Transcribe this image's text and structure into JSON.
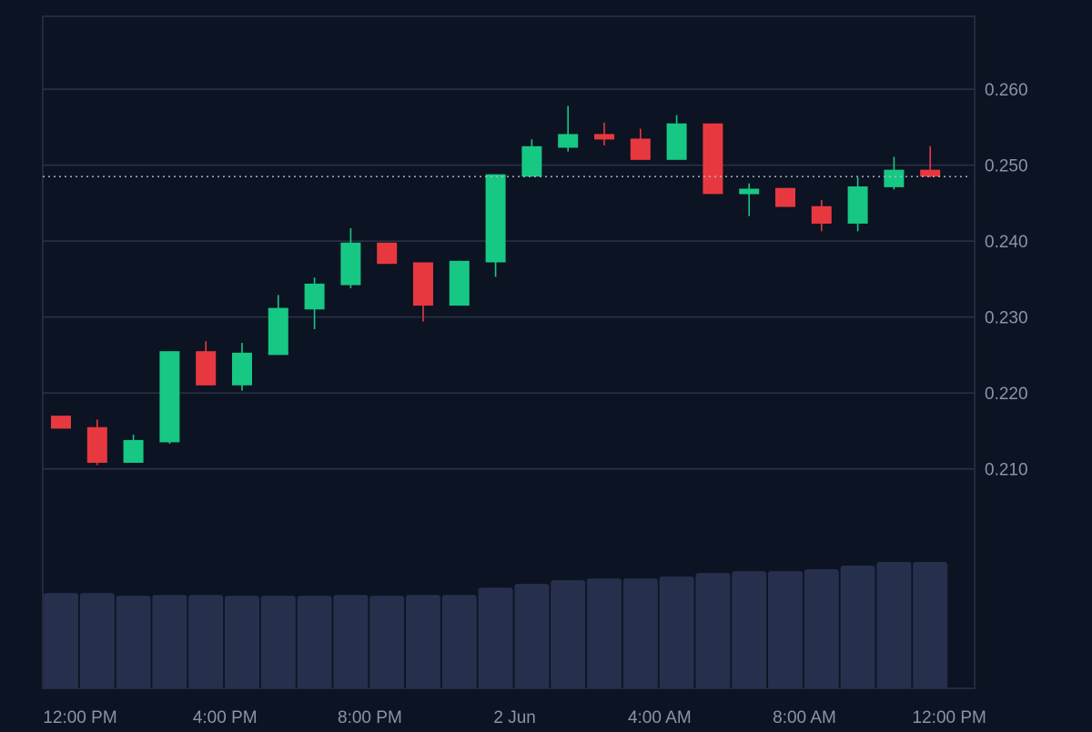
{
  "chart_data": {
    "type": "candlestick",
    "title": "",
    "xlabel": "",
    "ylabel": "",
    "y_ticks": [
      "0.210",
      "0.220",
      "0.230",
      "0.240",
      "0.250",
      "0.260"
    ],
    "y_tick_values": [
      0.21,
      0.22,
      0.23,
      0.24,
      0.25,
      0.26
    ],
    "x_ticks": [
      {
        "label": "12:00 PM",
        "at": 0
      },
      {
        "label": "4:00 PM",
        "at": 4
      },
      {
        "label": "8:00 PM",
        "at": 8
      },
      {
        "label": "2 Jun",
        "at": 12
      },
      {
        "label": "4:00 AM",
        "at": 16
      },
      {
        "label": "8:00 AM",
        "at": 20
      },
      {
        "label": "12:00 PM",
        "at": 24
      }
    ],
    "ylim": [
      0.1975,
      0.2696
    ],
    "price_line": 0.2485,
    "grid": true,
    "colors": {
      "up": "#17c784",
      "down": "#e8383f",
      "volume": "#26304d",
      "grid": "#2a3246",
      "text": "#8b93a6",
      "background": "#0c1322",
      "price_line": "#b8bfcc"
    },
    "candles": [
      {
        "o": 0.217,
        "h": 0.217,
        "l": 0.2153,
        "c": 0.2153
      },
      {
        "o": 0.2155,
        "h": 0.2165,
        "l": 0.2105,
        "c": 0.2108
      },
      {
        "o": 0.2108,
        "h": 0.2145,
        "l": 0.2108,
        "c": 0.2138
      },
      {
        "o": 0.2135,
        "h": 0.2255,
        "l": 0.2133,
        "c": 0.2255
      },
      {
        "o": 0.2255,
        "h": 0.2268,
        "l": 0.221,
        "c": 0.221
      },
      {
        "o": 0.221,
        "h": 0.2266,
        "l": 0.2203,
        "c": 0.2253
      },
      {
        "o": 0.225,
        "h": 0.2329,
        "l": 0.225,
        "c": 0.2312
      },
      {
        "o": 0.231,
        "h": 0.2352,
        "l": 0.2284,
        "c": 0.2344
      },
      {
        "o": 0.2342,
        "h": 0.2417,
        "l": 0.2338,
        "c": 0.2398
      },
      {
        "o": 0.2398,
        "h": 0.2398,
        "l": 0.237,
        "c": 0.237
      },
      {
        "o": 0.2372,
        "h": 0.2372,
        "l": 0.2294,
        "c": 0.2315
      },
      {
        "o": 0.2315,
        "h": 0.2374,
        "l": 0.2315,
        "c": 0.2374
      },
      {
        "o": 0.2372,
        "h": 0.2488,
        "l": 0.2353,
        "c": 0.2488
      },
      {
        "o": 0.2485,
        "h": 0.2534,
        "l": 0.2485,
        "c": 0.2525
      },
      {
        "o": 0.2523,
        "h": 0.2578,
        "l": 0.2518,
        "c": 0.2541
      },
      {
        "o": 0.2541,
        "h": 0.2556,
        "l": 0.2526,
        "c": 0.2534
      },
      {
        "o": 0.2535,
        "h": 0.2548,
        "l": 0.2507,
        "c": 0.2507
      },
      {
        "o": 0.2507,
        "h": 0.2566,
        "l": 0.2507,
        "c": 0.2555
      },
      {
        "o": 0.2555,
        "h": 0.2555,
        "l": 0.2462,
        "c": 0.2462
      },
      {
        "o": 0.2462,
        "h": 0.2476,
        "l": 0.2433,
        "c": 0.2469
      },
      {
        "o": 0.247,
        "h": 0.247,
        "l": 0.2445,
        "c": 0.2445
      },
      {
        "o": 0.2446,
        "h": 0.2454,
        "l": 0.2413,
        "c": 0.2423
      },
      {
        "o": 0.2423,
        "h": 0.2484,
        "l": 0.2413,
        "c": 0.2472
      },
      {
        "o": 0.2471,
        "h": 0.2511,
        "l": 0.2468,
        "c": 0.2494
      },
      {
        "o": 0.2494,
        "h": 0.2525,
        "l": 0.2484,
        "c": 0.2485
      }
    ],
    "volume": [
      104,
      104,
      101,
      102,
      102,
      101,
      101,
      101,
      102,
      101,
      102,
      102,
      110,
      114,
      118,
      120,
      120,
      122,
      126,
      128,
      128,
      130,
      134,
      138,
      138
    ]
  }
}
